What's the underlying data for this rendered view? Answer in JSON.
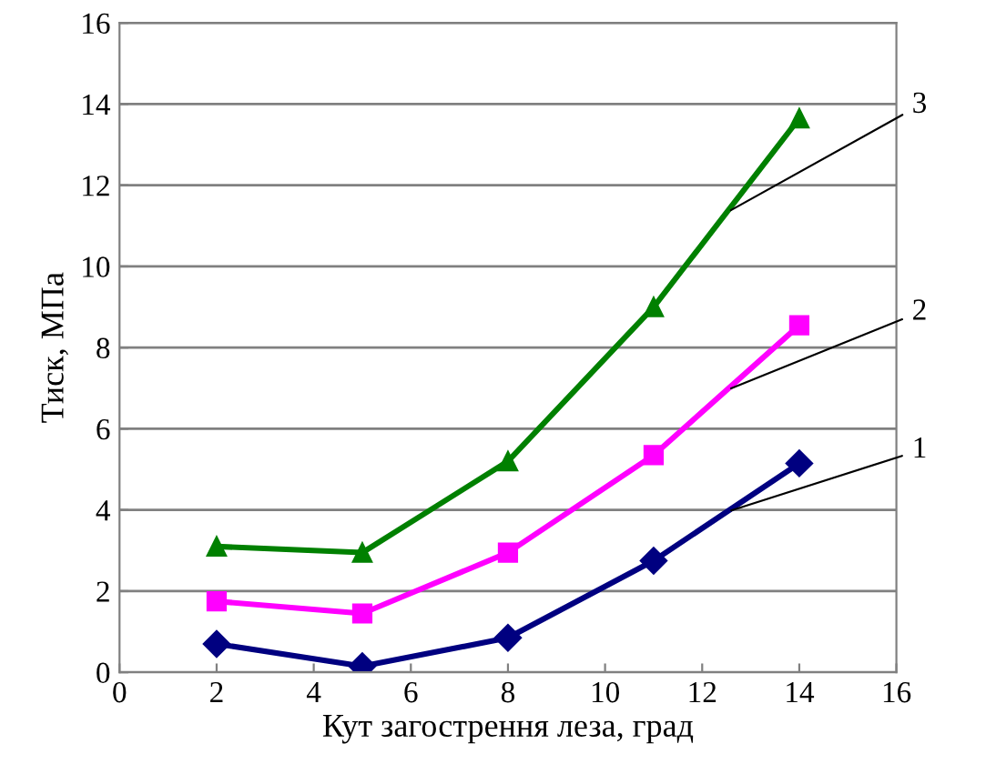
{
  "chart_data": {
    "type": "line",
    "xlabel": "Кут загострення леза, град",
    "ylabel": "Тиск, МПа",
    "x": [
      2,
      5,
      8,
      11,
      14
    ],
    "series": [
      {
        "name": "1",
        "color": "#000080",
        "marker": "diamond",
        "values": [
          0.7,
          0.15,
          0.85,
          2.75,
          5.15
        ]
      },
      {
        "name": "2",
        "color": "#ff00ff",
        "marker": "square",
        "values": [
          1.75,
          1.45,
          2.95,
          5.35,
          8.55
        ]
      },
      {
        "name": "3",
        "color": "#008000",
        "marker": "triangle",
        "values": [
          3.1,
          2.95,
          5.2,
          9.0,
          13.65
        ]
      }
    ],
    "xlim": [
      0,
      16
    ],
    "xticks": [
      0,
      2,
      4,
      6,
      8,
      10,
      12,
      14,
      16
    ],
    "ylim": [
      0,
      16
    ],
    "yticks": [
      0,
      2,
      4,
      6,
      8,
      10,
      12,
      14,
      16
    ],
    "grid": "y",
    "legend": false
  }
}
